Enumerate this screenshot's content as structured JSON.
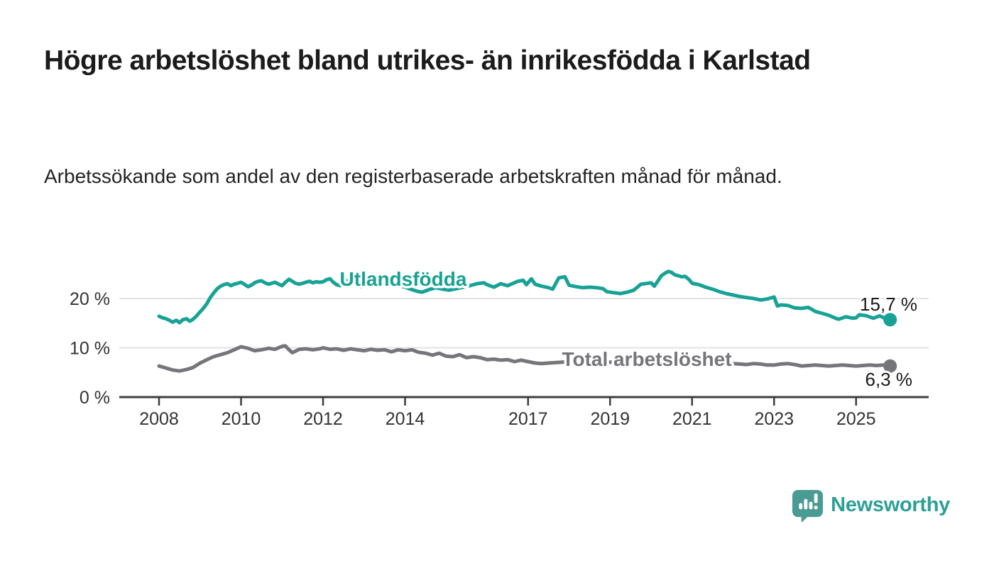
{
  "header": {
    "title": "Högre arbetslöshet bland utrikes- än inrikesfödda i Karlstad",
    "subtitle": "Arbetssökande som andel av den registerbaserade arbetskraften månad för månad."
  },
  "chart_data": {
    "type": "line",
    "title": "Högre arbetslöshet bland utrikes- än inrikesfödda i Karlstad",
    "subtitle": "Arbetssökande som andel av den registerbaserade arbetskraften månad för månad.",
    "grid": true,
    "legend_position": "inline-labels-on-lines",
    "x_axis": {
      "range": [
        2006.98,
        2026.77
      ],
      "ticks": [
        2008,
        2010,
        2012,
        2014,
        2017,
        2019,
        2021,
        2023,
        2025
      ],
      "tick_labels": [
        "2008",
        "2010",
        "2012",
        "2014",
        "2017",
        "2019",
        "2021",
        "2023",
        "2025"
      ]
    },
    "y_axis": {
      "range": [
        0,
        27.5
      ],
      "unit": "%",
      "ticks": [
        0,
        10,
        20
      ],
      "tick_labels": [
        "0 %",
        "10 %",
        "20 %"
      ],
      "gridlines": [
        10,
        20
      ]
    },
    "series": [
      {
        "name": "Utlandsfödda",
        "color": "#18a295",
        "end_label": "15,7 %",
        "last_value": 15.7,
        "points": [
          [
            2008.0,
            16.4
          ],
          [
            2008.08,
            16.1
          ],
          [
            2008.17,
            15.9
          ],
          [
            2008.25,
            15.6
          ],
          [
            2008.33,
            15.2
          ],
          [
            2008.42,
            15.6
          ],
          [
            2008.5,
            15.1
          ],
          [
            2008.58,
            15.7
          ],
          [
            2008.67,
            15.9
          ],
          [
            2008.75,
            15.4
          ],
          [
            2008.83,
            15.8
          ],
          [
            2008.92,
            16.5
          ],
          [
            2009.0,
            17.3
          ],
          [
            2009.08,
            18.0
          ],
          [
            2009.17,
            19.0
          ],
          [
            2009.25,
            20.2
          ],
          [
            2009.33,
            21.1
          ],
          [
            2009.42,
            22.0
          ],
          [
            2009.5,
            22.5
          ],
          [
            2009.58,
            22.8
          ],
          [
            2009.67,
            23.0
          ],
          [
            2009.75,
            22.6
          ],
          [
            2009.83,
            22.9
          ],
          [
            2009.92,
            23.1
          ],
          [
            2010.0,
            23.3
          ],
          [
            2010.08,
            22.9
          ],
          [
            2010.17,
            22.4
          ],
          [
            2010.25,
            22.7
          ],
          [
            2010.33,
            23.2
          ],
          [
            2010.42,
            23.5
          ],
          [
            2010.5,
            23.6
          ],
          [
            2010.58,
            23.2
          ],
          [
            2010.67,
            22.9
          ],
          [
            2010.75,
            23.1
          ],
          [
            2010.83,
            23.3
          ],
          [
            2010.92,
            22.9
          ],
          [
            2011.0,
            22.6
          ],
          [
            2011.08,
            23.3
          ],
          [
            2011.17,
            23.9
          ],
          [
            2011.25,
            23.5
          ],
          [
            2011.33,
            23.1
          ],
          [
            2011.42,
            22.9
          ],
          [
            2011.5,
            23.1
          ],
          [
            2011.58,
            23.3
          ],
          [
            2011.67,
            23.5
          ],
          [
            2011.75,
            23.2
          ],
          [
            2011.83,
            23.4
          ],
          [
            2011.92,
            23.3
          ],
          [
            2012.0,
            23.4
          ],
          [
            2012.08,
            23.8
          ],
          [
            2012.17,
            24.0
          ],
          [
            2012.25,
            23.3
          ],
          [
            2012.33,
            22.8
          ],
          [
            2012.42,
            22.6
          ],
          [
            2012.5,
            23.1
          ],
          [
            2012.58,
            23.6
          ],
          [
            2012.67,
            23.3
          ],
          [
            2012.75,
            22.9
          ],
          [
            2012.83,
            22.6
          ],
          [
            2012.92,
            22.4
          ],
          [
            2013.0,
            22.9
          ],
          [
            2013.08,
            23.3
          ],
          [
            2013.17,
            23.7
          ],
          [
            2013.25,
            23.4
          ],
          [
            2013.33,
            23.1
          ],
          [
            2013.42,
            23.0
          ],
          [
            2013.5,
            23.1
          ],
          [
            2013.58,
            23.3
          ],
          [
            2013.67,
            23.5
          ],
          [
            2013.75,
            23.1
          ],
          [
            2013.83,
            22.8
          ],
          [
            2013.92,
            22.5
          ],
          [
            2014.0,
            22.3
          ],
          [
            2014.17,
            21.8
          ],
          [
            2014.33,
            21.4
          ],
          [
            2014.42,
            21.3
          ],
          [
            2014.58,
            21.8
          ],
          [
            2014.75,
            22.2
          ],
          [
            2014.92,
            21.9
          ],
          [
            2015.08,
            21.7
          ],
          [
            2015.25,
            22.0
          ],
          [
            2015.42,
            22.3
          ],
          [
            2015.58,
            22.6
          ],
          [
            2015.75,
            23.0
          ],
          [
            2015.92,
            23.2
          ],
          [
            2016.0,
            22.8
          ],
          [
            2016.17,
            22.3
          ],
          [
            2016.33,
            23.0
          ],
          [
            2016.5,
            22.6
          ],
          [
            2016.75,
            23.5
          ],
          [
            2016.88,
            23.7
          ],
          [
            2016.96,
            22.8
          ],
          [
            2017.08,
            24.0
          ],
          [
            2017.17,
            22.9
          ],
          [
            2017.33,
            22.5
          ],
          [
            2017.5,
            22.2
          ],
          [
            2017.6,
            21.9
          ],
          [
            2017.75,
            24.2
          ],
          [
            2017.9,
            24.4
          ],
          [
            2018.0,
            22.7
          ],
          [
            2018.17,
            22.4
          ],
          [
            2018.33,
            22.2
          ],
          [
            2018.5,
            22.3
          ],
          [
            2018.67,
            22.2
          ],
          [
            2018.83,
            22.0
          ],
          [
            2018.92,
            21.4
          ],
          [
            2019.08,
            21.2
          ],
          [
            2019.25,
            21.0
          ],
          [
            2019.42,
            21.3
          ],
          [
            2019.58,
            21.7
          ],
          [
            2019.75,
            22.9
          ],
          [
            2019.92,
            23.1
          ],
          [
            2020.0,
            23.2
          ],
          [
            2020.08,
            22.5
          ],
          [
            2020.17,
            23.6
          ],
          [
            2020.25,
            24.6
          ],
          [
            2020.33,
            25.1
          ],
          [
            2020.42,
            25.5
          ],
          [
            2020.5,
            25.3
          ],
          [
            2020.58,
            24.8
          ],
          [
            2020.67,
            24.6
          ],
          [
            2020.75,
            24.4
          ],
          [
            2020.83,
            24.5
          ],
          [
            2020.92,
            23.9
          ],
          [
            2021.0,
            23.1
          ],
          [
            2021.17,
            22.8
          ],
          [
            2021.33,
            22.3
          ],
          [
            2021.5,
            21.9
          ],
          [
            2021.67,
            21.4
          ],
          [
            2021.83,
            21.0
          ],
          [
            2022.0,
            20.7
          ],
          [
            2022.17,
            20.4
          ],
          [
            2022.33,
            20.2
          ],
          [
            2022.5,
            20.0
          ],
          [
            2022.67,
            19.7
          ],
          [
            2022.83,
            19.9
          ],
          [
            2023.0,
            20.3
          ],
          [
            2023.08,
            18.5
          ],
          [
            2023.17,
            18.7
          ],
          [
            2023.33,
            18.6
          ],
          [
            2023.5,
            18.1
          ],
          [
            2023.67,
            18.0
          ],
          [
            2023.83,
            18.2
          ],
          [
            2023.92,
            17.8
          ],
          [
            2024.0,
            17.4
          ],
          [
            2024.17,
            17.0
          ],
          [
            2024.33,
            16.6
          ],
          [
            2024.5,
            16.0
          ],
          [
            2024.58,
            15.8
          ],
          [
            2024.75,
            16.3
          ],
          [
            2024.92,
            16.0
          ],
          [
            2025.0,
            16.1
          ],
          [
            2025.08,
            16.7
          ],
          [
            2025.25,
            16.5
          ],
          [
            2025.42,
            16.0
          ],
          [
            2025.58,
            16.5
          ],
          [
            2025.67,
            16.1
          ],
          [
            2025.75,
            15.9
          ],
          [
            2025.83,
            15.7
          ]
        ]
      },
      {
        "name": "Total arbetslöshet",
        "color": "#75757a",
        "end_label": "6,3 %",
        "last_value": 6.3,
        "points": [
          [
            2008.0,
            6.3
          ],
          [
            2008.17,
            5.9
          ],
          [
            2008.33,
            5.5
          ],
          [
            2008.5,
            5.3
          ],
          [
            2008.67,
            5.6
          ],
          [
            2008.83,
            6.0
          ],
          [
            2009.0,
            6.9
          ],
          [
            2009.17,
            7.6
          ],
          [
            2009.33,
            8.2
          ],
          [
            2009.5,
            8.6
          ],
          [
            2009.67,
            9.0
          ],
          [
            2009.83,
            9.6
          ],
          [
            2010.0,
            10.2
          ],
          [
            2010.17,
            9.9
          ],
          [
            2010.33,
            9.4
          ],
          [
            2010.5,
            9.6
          ],
          [
            2010.67,
            9.9
          ],
          [
            2010.83,
            9.7
          ],
          [
            2011.0,
            10.3
          ],
          [
            2011.08,
            10.4
          ],
          [
            2011.17,
            9.6
          ],
          [
            2011.25,
            9.0
          ],
          [
            2011.42,
            9.7
          ],
          [
            2011.58,
            9.8
          ],
          [
            2011.75,
            9.6
          ],
          [
            2011.92,
            9.8
          ],
          [
            2012.0,
            10.0
          ],
          [
            2012.17,
            9.7
          ],
          [
            2012.33,
            9.8
          ],
          [
            2012.5,
            9.5
          ],
          [
            2012.67,
            9.8
          ],
          [
            2012.83,
            9.6
          ],
          [
            2013.0,
            9.4
          ],
          [
            2013.17,
            9.7
          ],
          [
            2013.33,
            9.5
          ],
          [
            2013.5,
            9.6
          ],
          [
            2013.67,
            9.2
          ],
          [
            2013.83,
            9.6
          ],
          [
            2014.0,
            9.4
          ],
          [
            2014.17,
            9.6
          ],
          [
            2014.33,
            9.1
          ],
          [
            2014.5,
            8.9
          ],
          [
            2014.67,
            8.5
          ],
          [
            2014.83,
            8.9
          ],
          [
            2015.0,
            8.3
          ],
          [
            2015.17,
            8.2
          ],
          [
            2015.33,
            8.6
          ],
          [
            2015.5,
            8.0
          ],
          [
            2015.67,
            8.2
          ],
          [
            2015.83,
            8.0
          ],
          [
            2016.0,
            7.6
          ],
          [
            2016.17,
            7.7
          ],
          [
            2016.33,
            7.5
          ],
          [
            2016.5,
            7.6
          ],
          [
            2016.67,
            7.2
          ],
          [
            2016.83,
            7.5
          ],
          [
            2017.0,
            7.2
          ],
          [
            2017.17,
            6.9
          ],
          [
            2017.33,
            6.8
          ],
          [
            2017.5,
            6.9
          ],
          [
            2017.67,
            7.0
          ],
          [
            2017.83,
            7.1
          ],
          [
            2018.0,
            7.2
          ],
          [
            2018.25,
            7.0
          ],
          [
            2018.5,
            6.9
          ],
          [
            2018.75,
            7.0
          ],
          [
            2019.0,
            7.1
          ],
          [
            2019.25,
            6.9
          ],
          [
            2019.5,
            7.0
          ],
          [
            2019.75,
            7.2
          ],
          [
            2020.0,
            7.4
          ],
          [
            2020.25,
            8.1
          ],
          [
            2020.42,
            8.4
          ],
          [
            2020.58,
            8.3
          ],
          [
            2020.75,
            8.2
          ],
          [
            2020.92,
            8.0
          ],
          [
            2021.0,
            7.9
          ],
          [
            2021.25,
            7.6
          ],
          [
            2021.5,
            7.3
          ],
          [
            2021.75,
            7.0
          ],
          [
            2022.0,
            6.8
          ],
          [
            2022.17,
            6.7
          ],
          [
            2022.33,
            6.6
          ],
          [
            2022.5,
            6.8
          ],
          [
            2022.67,
            6.7
          ],
          [
            2022.83,
            6.5
          ],
          [
            2023.0,
            6.5
          ],
          [
            2023.17,
            6.7
          ],
          [
            2023.33,
            6.8
          ],
          [
            2023.5,
            6.6
          ],
          [
            2023.67,
            6.3
          ],
          [
            2023.83,
            6.4
          ],
          [
            2024.0,
            6.5
          ],
          [
            2024.17,
            6.4
          ],
          [
            2024.33,
            6.3
          ],
          [
            2024.5,
            6.4
          ],
          [
            2024.67,
            6.5
          ],
          [
            2024.83,
            6.4
          ],
          [
            2025.0,
            6.3
          ],
          [
            2025.17,
            6.4
          ],
          [
            2025.33,
            6.5
          ],
          [
            2025.5,
            6.4
          ],
          [
            2025.67,
            6.5
          ],
          [
            2025.83,
            6.3
          ]
        ]
      }
    ],
    "colors": {
      "gridline": "#e3e3e3",
      "axis": "#3d3d3d",
      "tick_text": "#333333",
      "value_label_text": "#1a1a1a"
    }
  },
  "branding": {
    "logo_text": "Newsworthy",
    "logo_text_color": "#2ba097",
    "icon_color": "#4a9b94",
    "icon_name": "newsworthy-chart-bubble-icon"
  }
}
